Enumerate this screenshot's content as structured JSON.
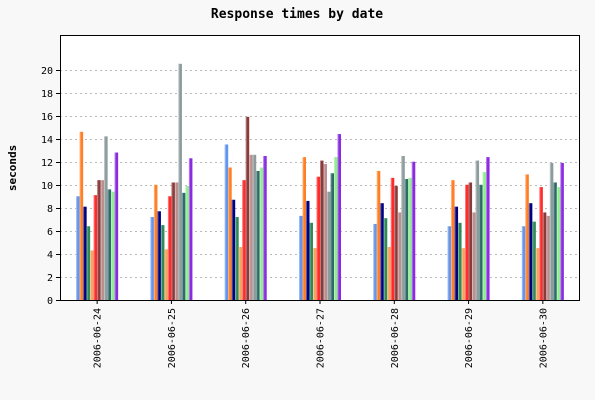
{
  "chart_data": {
    "type": "bar",
    "title": "Response times by date",
    "xlabel": "",
    "ylabel": "seconds",
    "ylim": [
      0,
      23
    ],
    "yticks": [
      0,
      2,
      4,
      6,
      8,
      10,
      12,
      14,
      16,
      18,
      20
    ],
    "grid": "horizontal",
    "legend": "none",
    "categories": [
      "2006-06-24",
      "2006-06-25",
      "2006-06-26",
      "2006-06-27",
      "2006-06-28",
      "2006-06-29",
      "2006-06-30"
    ],
    "series": [
      {
        "color": "#6495ed",
        "values": [
          9.0,
          7.2,
          13.5,
          7.3,
          6.6,
          6.4,
          6.4
        ]
      },
      {
        "color": "#ff7f24",
        "values": [
          14.6,
          10.0,
          11.5,
          12.4,
          11.2,
          10.4,
          10.9
        ]
      },
      {
        "color": "#000080",
        "values": [
          8.1,
          7.7,
          8.7,
          8.6,
          8.4,
          8.1,
          8.4
        ]
      },
      {
        "color": "#2e8b57",
        "values": [
          6.4,
          6.5,
          7.2,
          6.7,
          7.1,
          6.7,
          6.8
        ]
      },
      {
        "color": "#f4a460",
        "values": [
          4.3,
          4.4,
          4.6,
          4.5,
          4.6,
          4.5,
          4.5
        ]
      },
      {
        "color": "#ff2a2a",
        "values": [
          9.1,
          9.0,
          10.4,
          10.7,
          10.6,
          10.0,
          9.8
        ]
      },
      {
        "color": "#8b3a3a",
        "values": [
          10.4,
          10.2,
          15.9,
          12.1,
          9.9,
          10.2,
          7.6
        ]
      },
      {
        "color": "#bc8f8f",
        "values": [
          10.4,
          10.2,
          12.6,
          11.8,
          7.6,
          7.6,
          7.3
        ]
      },
      {
        "color": "#8c9c9c",
        "values": [
          14.2,
          20.5,
          12.6,
          9.4,
          12.5,
          12.1,
          11.9
        ]
      },
      {
        "color": "#2f6a6a",
        "values": [
          9.6,
          9.3,
          11.2,
          11.0,
          10.5,
          10.0,
          10.2
        ]
      },
      {
        "color": "#90ee90",
        "values": [
          9.4,
          9.9,
          11.5,
          12.4,
          10.6,
          11.1,
          9.8
        ]
      },
      {
        "color": "#8a2be2",
        "values": [
          12.8,
          12.3,
          12.5,
          14.4,
          12.0,
          12.4,
          11.9
        ]
      }
    ]
  }
}
